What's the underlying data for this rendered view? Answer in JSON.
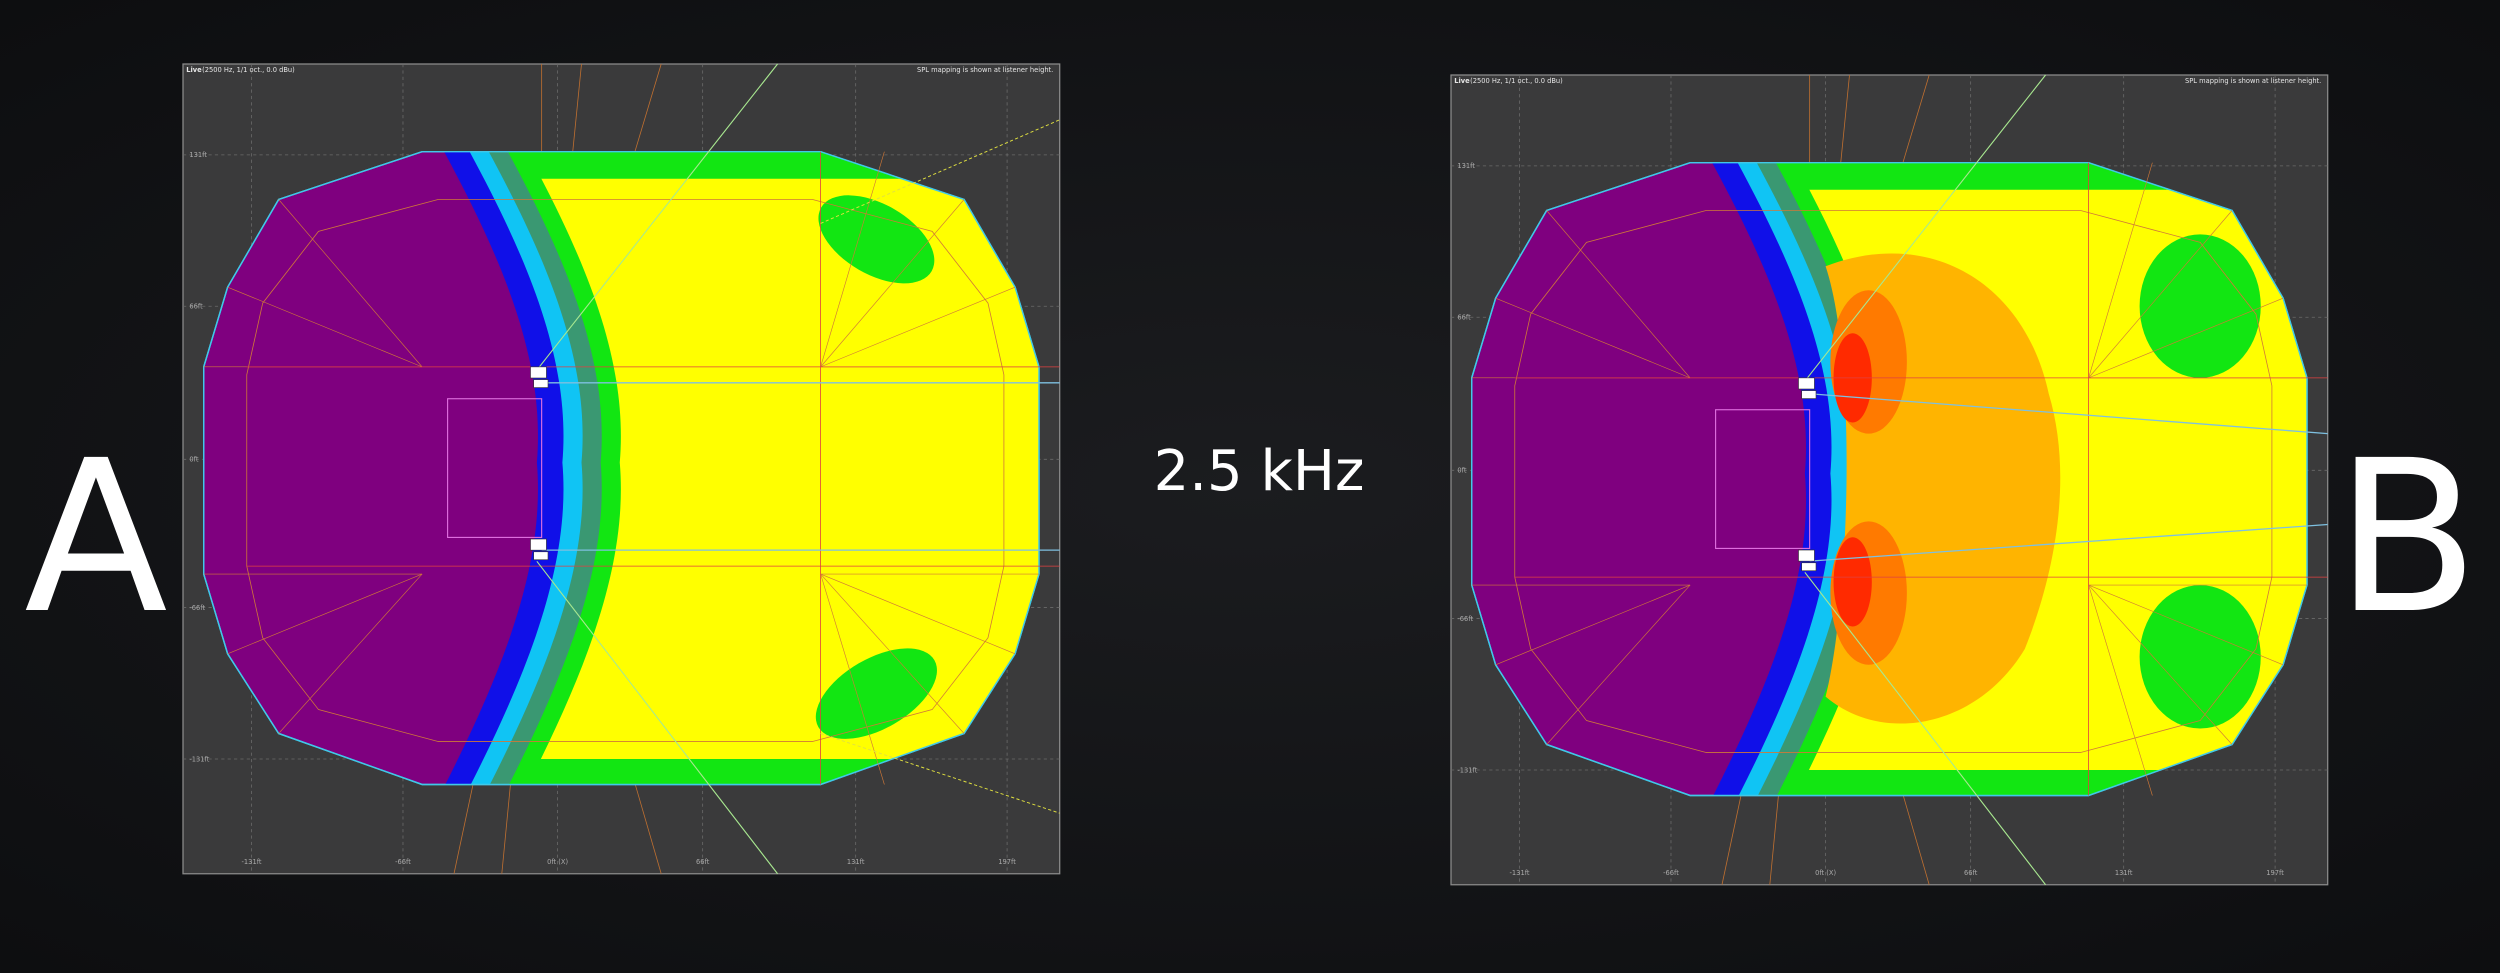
{
  "labels": {
    "left": "A",
    "center": "2.5 kHz",
    "right": "B"
  },
  "panels": [
    {
      "header": "Live",
      "subheader": "(2500 Hz, 1/1 oct., 0.0 dBu)",
      "note": "SPL mapping is shown at listener height.",
      "x_axis_labels": [
        "-131ft",
        "-66ft",
        "0ft (X)",
        "66ft",
        "131ft",
        "197ft"
      ],
      "y_axis_labels": [
        "131ft",
        "66ft",
        "0ft",
        "-66ft",
        "-131ft"
      ]
    },
    {
      "header": "Live",
      "subheader": "(2500 Hz, 1/1 oct., 0.0 dBu)",
      "note": "SPL mapping is shown at listener height.",
      "x_axis_labels": [
        "-131ft",
        "-66ft",
        "0ft (X)",
        "66ft",
        "131ft",
        "197ft"
      ],
      "y_axis_labels": [
        "131ft",
        "66ft",
        "0ft",
        "-66ft",
        "-131ft"
      ]
    }
  ]
}
